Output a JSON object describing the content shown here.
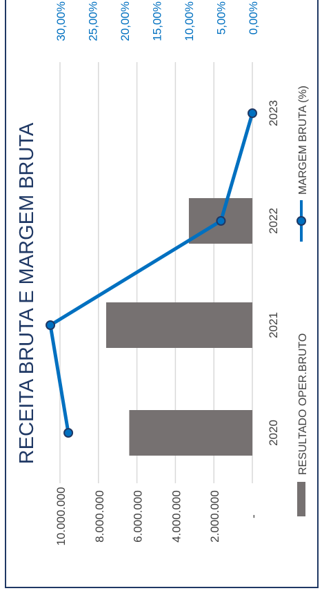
{
  "chart_data": {
    "type": "bar",
    "title": "RECEITA BRUTA E MARGEM BRUTA",
    "categories": [
      "2020",
      "2021",
      "2022",
      "2023"
    ],
    "series": [
      {
        "name": "RESULTADO OPER.BRUTO",
        "type": "bar",
        "axis": "primary",
        "color": "#767171",
        "values": [
          6400000,
          7600000,
          3300000,
          0
        ]
      },
      {
        "name": "MARGEM BRUTA (%)",
        "type": "line",
        "axis": "secondary",
        "color": "#0070C0",
        "values": [
          28.7,
          31.5,
          4.9,
          0.0
        ]
      }
    ],
    "primary_axis": {
      "range": [
        0,
        10000000
      ],
      "ticks": [
        "-",
        "2.000.000",
        "4.000.000",
        "6.000.000",
        "8.000.000",
        "10.000.000"
      ]
    },
    "secondary_axis": {
      "range": [
        0,
        30
      ],
      "ticks": [
        "0,00%",
        "5,00%",
        "10,00%",
        "15,00%",
        "20,00%",
        "25,00%",
        "30,00%"
      ]
    },
    "grid": true,
    "legend_position": "bottom",
    "orientation": "rotated-90"
  }
}
